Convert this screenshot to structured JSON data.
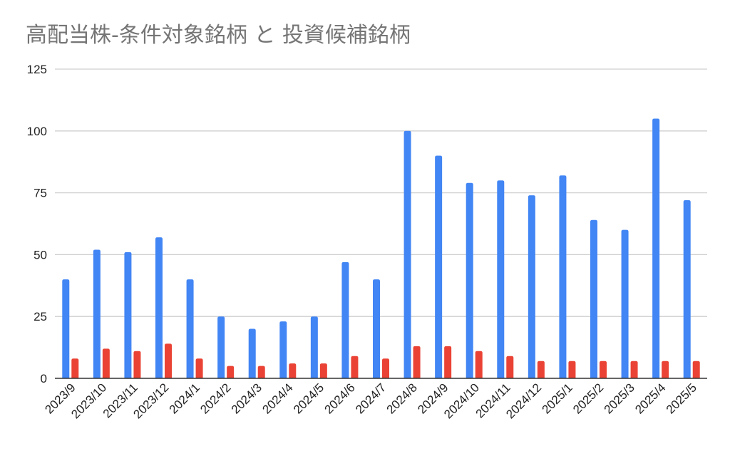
{
  "chart_data": {
    "type": "bar",
    "title": "高配当株-条件対象銘柄 と 投資候補銘柄",
    "xlabel": "",
    "ylabel": "",
    "ylim": [
      0,
      125
    ],
    "yticks": [
      0,
      25,
      50,
      75,
      100,
      125
    ],
    "grid": true,
    "legend": "none",
    "categories": [
      "2023/9",
      "2023/10",
      "2023/11",
      "2023/12",
      "2024/1",
      "2024/2",
      "2024/3",
      "2024/4",
      "2024/5",
      "2024/6",
      "2024/7",
      "2024/8",
      "2024/9",
      "2024/10",
      "2024/11",
      "2024/12",
      "2025/1",
      "2025/2",
      "2025/3",
      "2025/4",
      "2025/5"
    ],
    "series": [
      {
        "color": "#4285f4",
        "values": [
          40,
          52,
          51,
          57,
          40,
          25,
          20,
          23,
          25,
          47,
          40,
          100,
          90,
          79,
          80,
          74,
          82,
          64,
          60,
          105,
          72
        ]
      },
      {
        "color": "#ea4335",
        "values": [
          8,
          12,
          11,
          14,
          8,
          5,
          5,
          6,
          6,
          9,
          8,
          13,
          13,
          11,
          9,
          7,
          7,
          7,
          7,
          7,
          7
        ]
      }
    ]
  }
}
